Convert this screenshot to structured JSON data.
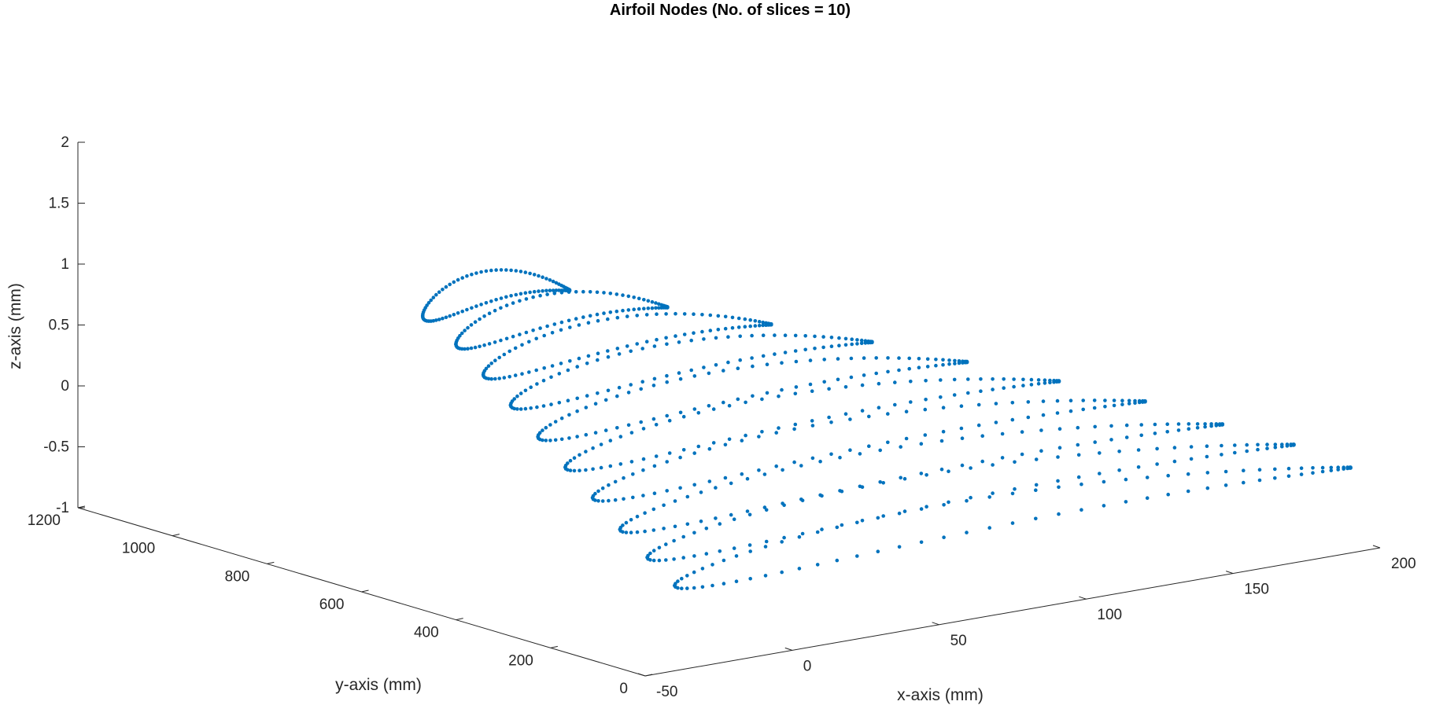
{
  "chart_data": {
    "type": "scatter",
    "title": "Airfoil Nodes (No. of slices = 10)",
    "xlabel": "x-axis (mm)",
    "ylabel": "y-axis (mm)",
    "zlabel": "z-axis (mm)",
    "xlim": [
      -50,
      200
    ],
    "ylim": [
      0,
      1200
    ],
    "zlim": [
      -1,
      2
    ],
    "x_ticks": [
      "-50",
      "0",
      "50",
      "100",
      "150",
      "200"
    ],
    "y_ticks": [
      "0",
      "200",
      "400",
      "600",
      "800",
      "1000",
      "1200"
    ],
    "z_ticks": [
      "-1",
      "-0.5",
      "0",
      "0.5",
      "1",
      "1.5",
      "2"
    ],
    "grid": false,
    "marker_color": "#0072BD",
    "slices": [
      {
        "leading_edge_x": -40,
        "trailing_edge_x": 190,
        "y": 0,
        "z_offset": -0.3
      },
      {
        "leading_edge_x": -30,
        "trailing_edge_x": 190,
        "y": 120,
        "z_offset": -0.25
      },
      {
        "leading_edge_x": -20,
        "trailing_edge_x": 185,
        "y": 240,
        "z_offset": -0.2
      },
      {
        "leading_edge_x": -10,
        "trailing_edge_x": 178,
        "y": 360,
        "z_offset": -0.12
      },
      {
        "leading_edge_x": 0,
        "trailing_edge_x": 168,
        "y": 480,
        "z_offset": -0.05
      },
      {
        "leading_edge_x": 10,
        "trailing_edge_x": 156,
        "y": 600,
        "z_offset": 0.02
      },
      {
        "leading_edge_x": 20,
        "trailing_edge_x": 143,
        "y": 720,
        "z_offset": 0.1
      },
      {
        "leading_edge_x": 30,
        "trailing_edge_x": 128,
        "y": 840,
        "z_offset": 0.17
      },
      {
        "leading_edge_x": 40,
        "trailing_edge_x": 112,
        "y": 960,
        "z_offset": 0.24
      },
      {
        "leading_edge_x": 48,
        "trailing_edge_x": 98,
        "y": 1080,
        "z_offset": 0.3
      }
    ]
  }
}
